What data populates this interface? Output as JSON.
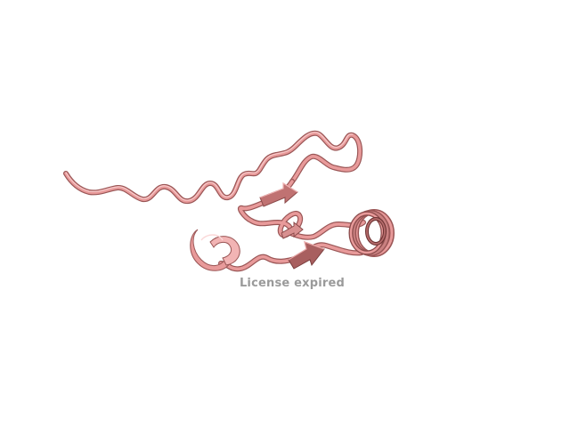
{
  "scene": {
    "background_color": "#ffffff",
    "ribbon_color": "#e89a9a",
    "ribbon_shadow_color": "#9a5656",
    "ribbon_highlight_color": "#f7caca",
    "watermark_color": "#9a9a9a"
  },
  "watermark": {
    "text": "License expired"
  }
}
